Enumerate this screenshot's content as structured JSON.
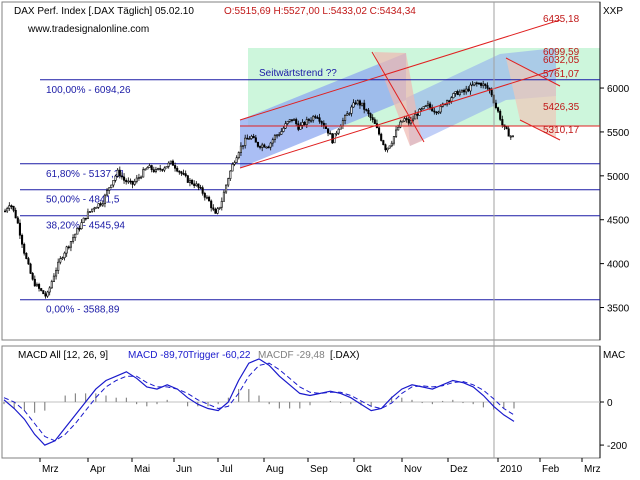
{
  "header": {
    "symbol": "DAX Perf. Index [.DAX  Täglich] 05.02.10",
    "ohlc": "O:5515,69 H:5527,00 L:5433,02 C:5434,34",
    "website": "www.tradesignalonline.com",
    "price_axis_label": "XXP"
  },
  "annotations": {
    "channel_label": "Seitwärtstrend ??"
  },
  "macd": {
    "header_name": "MACD All [12, 26, 9]",
    "macd_label": "MACD -89,70",
    "trigger_label": "Trigger -60,22",
    "macdf_label": "MACDF -29,48",
    "symbol_label": "[.DAX)",
    "axis_label": "MAC"
  },
  "colors": {
    "up": "#ffffff",
    "down": "#000000",
    "fib_line": "#1a1aa6",
    "channel_red": "#e02020",
    "macd_line": "#1a1acc",
    "trigger_line": "#1a1acc",
    "histogram": "#888888",
    "label_red": "#c01818",
    "label_blue": "#1a1aa6"
  },
  "chart_data": [
    {
      "type": "candlestick",
      "title": "DAX Perf. Index",
      "y_axis": {
        "ticks": [
          3500,
          4000,
          4500,
          5000,
          5500,
          6000
        ],
        "ylim": [
          3130,
          6980
        ]
      },
      "x_axis": {
        "ticks": [
          "Mrz",
          "Apr",
          "Mai",
          "Jun",
          "Jul",
          "Aug",
          "Sep",
          "Okt",
          "Nov",
          "Dez",
          "2010",
          "Feb",
          "Mrz"
        ]
      },
      "fibonacci_levels": [
        {
          "label": "100,00% - 6094,26",
          "value": 6094.26
        },
        {
          "label": "61,80% - 5137,21",
          "value": 5137.21
        },
        {
          "label": "50,00% - 4841,5",
          "value": 4841.5
        },
        {
          "label": "38,20% - 4545,94",
          "value": 4545.94
        },
        {
          "label": "0,00% - 3588,89",
          "value": 3588.89
        }
      ],
      "price_labels": [
        "6435,18",
        "6099,59",
        "6032,05",
        "5761,07",
        "5426,35",
        "5310,17"
      ],
      "path_points": [
        [
          0,
          4600
        ],
        [
          5,
          4700
        ],
        [
          12,
          4500
        ],
        [
          20,
          4100
        ],
        [
          28,
          3800
        ],
        [
          35,
          3700
        ],
        [
          42,
          3620
        ],
        [
          50,
          3900
        ],
        [
          58,
          4100
        ],
        [
          66,
          4250
        ],
        [
          74,
          4400
        ],
        [
          82,
          4550
        ],
        [
          90,
          4650
        ],
        [
          98,
          4700
        ],
        [
          106,
          4900
        ],
        [
          114,
          5050
        ],
        [
          120,
          4950
        ],
        [
          128,
          4900
        ],
        [
          136,
          5000
        ],
        [
          144,
          5100
        ],
        [
          152,
          5050
        ],
        [
          160,
          5100
        ],
        [
          168,
          5150
        ],
        [
          176,
          5050
        ],
        [
          184,
          4950
        ],
        [
          192,
          4900
        ],
        [
          200,
          4800
        ],
        [
          206,
          4700
        ],
        [
          212,
          4550
        ],
        [
          218,
          4700
        ],
        [
          224,
          4950
        ],
        [
          230,
          5150
        ],
        [
          236,
          5300
        ],
        [
          242,
          5400
        ],
        [
          248,
          5450
        ],
        [
          254,
          5350
        ],
        [
          260,
          5350
        ],
        [
          266,
          5350
        ],
        [
          272,
          5450
        ],
        [
          278,
          5500
        ],
        [
          284,
          5600
        ],
        [
          290,
          5650
        ],
        [
          296,
          5550
        ],
        [
          302,
          5600
        ],
        [
          308,
          5650
        ],
        [
          314,
          5700
        ],
        [
          320,
          5600
        ],
        [
          326,
          5500
        ],
        [
          330,
          5400
        ],
        [
          336,
          5550
        ],
        [
          342,
          5650
        ],
        [
          348,
          5750
        ],
        [
          354,
          5850
        ],
        [
          360,
          5800
        ],
        [
          366,
          5700
        ],
        [
          372,
          5600
        ],
        [
          378,
          5450
        ],
        [
          384,
          5300
        ],
        [
          390,
          5400
        ],
        [
          396,
          5550
        ],
        [
          402,
          5650
        ],
        [
          408,
          5600
        ],
        [
          414,
          5700
        ],
        [
          420,
          5750
        ],
        [
          426,
          5800
        ],
        [
          432,
          5750
        ],
        [
          438,
          5750
        ],
        [
          444,
          5850
        ],
        [
          450,
          5900
        ],
        [
          456,
          5950
        ],
        [
          462,
          5950
        ],
        [
          468,
          6000
        ],
        [
          474,
          6050
        ],
        [
          480,
          6050
        ],
        [
          486,
          6000
        ],
        [
          490,
          5950
        ],
        [
          494,
          5800
        ],
        [
          498,
          5700
        ],
        [
          502,
          5550
        ],
        [
          506,
          5500
        ],
        [
          510,
          5450
        ],
        [
          514,
          5430
        ]
      ]
    },
    {
      "type": "line",
      "title": "MACD All [12, 26, 9]",
      "y_axis": {
        "ticks": [
          0,
          -200
        ],
        "ylim": [
          -260,
          260
        ]
      },
      "series": [
        {
          "name": "MACD",
          "values": [
            10,
            -30,
            -80,
            -150,
            -200,
            -180,
            -120,
            -60,
            0,
            60,
            100,
            120,
            140,
            110,
            70,
            60,
            80,
            60,
            20,
            -10,
            -30,
            -40,
            0,
            100,
            180,
            200,
            170,
            120,
            80,
            40,
            30,
            40,
            50,
            40,
            20,
            -10,
            -40,
            -30,
            20,
            60,
            80,
            70,
            60,
            80,
            100,
            90,
            70,
            30,
            -20,
            -60,
            -90
          ]
        },
        {
          "name": "Trigger",
          "values": [
            20,
            0,
            -40,
            -100,
            -160,
            -180,
            -150,
            -100,
            -40,
            20,
            70,
            100,
            120,
            120,
            90,
            70,
            70,
            60,
            40,
            10,
            -10,
            -30,
            -20,
            40,
            120,
            170,
            180,
            150,
            110,
            70,
            45,
            40,
            45,
            45,
            30,
            5,
            -20,
            -30,
            -5,
            40,
            70,
            75,
            70,
            75,
            90,
            95,
            80,
            55,
            15,
            -30,
            -60
          ]
        },
        {
          "name": "MACDF",
          "values": [
            -10,
            -30,
            -40,
            -50,
            -40,
            0,
            30,
            40,
            40,
            40,
            30,
            20,
            20,
            -10,
            -20,
            -10,
            10,
            0,
            -20,
            -20,
            -20,
            -10,
            20,
            60,
            60,
            30,
            -10,
            -30,
            -30,
            -30,
            -15,
            0,
            5,
            -5,
            -10,
            -15,
            -20,
            0,
            25,
            20,
            10,
            -5,
            -10,
            5,
            10,
            -5,
            -10,
            -25,
            -35,
            -30,
            -30
          ]
        }
      ]
    }
  ]
}
